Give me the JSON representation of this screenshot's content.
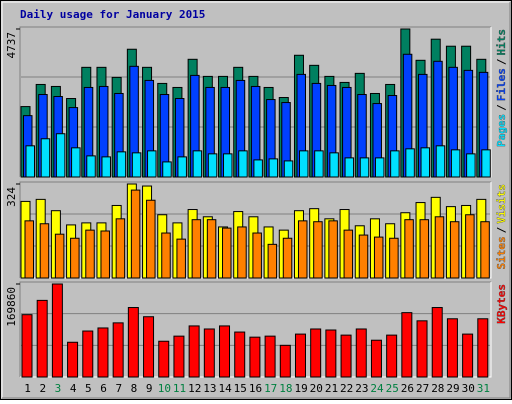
{
  "title": "Daily usage for January 2015",
  "legend_separator": "/",
  "chart_data": [
    {
      "type": "bar",
      "ylim": [
        0,
        4737
      ],
      "yticks": [
        4737
      ],
      "series": [
        {
          "name": "Hits",
          "color": "#008060",
          "values": [
            2254,
            2962,
            2898,
            2512,
            3510,
            3510,
            3188,
            4089,
            3510,
            2995,
            2866,
            3767,
            3220,
            3220,
            3510,
            3220,
            2866,
            2544,
            3896,
            3574,
            3220,
            3027,
            3317,
            2673,
            2962,
            4737,
            3735,
            4411,
            4186,
            4186,
            3767
          ]
        },
        {
          "name": "Files",
          "color": "#0040ff",
          "values": [
            1964,
            2640,
            2576,
            2222,
            2866,
            2898,
            2673,
            3542,
            3091,
            2640,
            2512,
            3252,
            2866,
            2866,
            3091,
            2898,
            2479,
            2383,
            3284,
            2995,
            2930,
            2866,
            2640,
            2351,
            2608,
            3928,
            3284,
            3703,
            3510,
            3413,
            3349
          ]
        },
        {
          "name": "Pages",
          "color": "#00e0ff",
          "values": [
            998,
            1224,
            1385,
            934,
            676,
            644,
            805,
            773,
            837,
            483,
            644,
            837,
            741,
            741,
            837,
            547,
            580,
            515,
            837,
            837,
            773,
            612,
            612,
            612,
            837,
            902,
            934,
            998,
            869,
            741,
            869
          ]
        }
      ]
    },
    {
      "type": "bar",
      "ylim": [
        0,
        324
      ],
      "yticks": [
        324
      ],
      "series": [
        {
          "name": "Visits",
          "color": "#ffff00",
          "values": [
            264,
            271,
            232,
            183,
            190,
            190,
            250,
            324,
            317,
            218,
            190,
            236,
            211,
            176,
            229,
            211,
            176,
            165,
            232,
            239,
            204,
            236,
            180,
            204,
            187,
            225,
            260,
            278,
            246,
            250,
            271
          ]
        },
        {
          "name": "Sites",
          "color": "#ff8000",
          "values": [
            197,
            187,
            151,
            137,
            165,
            162,
            204,
            303,
            268,
            155,
            134,
            201,
            201,
            172,
            176,
            155,
            116,
            137,
            197,
            194,
            197,
            165,
            148,
            141,
            137,
            201,
            201,
            211,
            194,
            218,
            194
          ]
        }
      ]
    },
    {
      "type": "bar",
      "ylim": [
        0,
        169860
      ],
      "yticks": [
        169860
      ],
      "categories": [
        "1",
        "2",
        "3",
        "4",
        "5",
        "6",
        "7",
        "8",
        "9",
        "10",
        "11",
        "12",
        "13",
        "14",
        "15",
        "16",
        "17",
        "18",
        "19",
        "20",
        "21",
        "22",
        "23",
        "24",
        "25",
        "26",
        "27",
        "28",
        "29",
        "30",
        "31"
      ],
      "category_colors": [
        "#000000",
        "#000000",
        "#008040",
        "#000000",
        "#000000",
        "#000000",
        "#000000",
        "#000000",
        "#000000",
        "#008040",
        "#008040",
        "#000000",
        "#000000",
        "#000000",
        "#000000",
        "#000000",
        "#008040",
        "#008040",
        "#000000",
        "#000000",
        "#000000",
        "#000000",
        "#000000",
        "#008040",
        "#008040",
        "#000000",
        "#000000",
        "#000000",
        "#000000",
        "#000000",
        "#008040"
      ],
      "series": [
        {
          "name": "KBytes",
          "color": "#ff0000",
          "values": [
            113826,
            139950,
            169860,
            63444,
            83970,
            89568,
            98898,
            126888,
            110094,
            65310,
            74640,
            93300,
            87702,
            93300,
            82104,
            72774,
            74640,
            57846,
            78372,
            87702,
            85836,
            76506,
            87702,
            67176,
            76506,
            117558,
            102630,
            126888,
            106362,
            78372,
            106362
          ]
        }
      ]
    }
  ]
}
